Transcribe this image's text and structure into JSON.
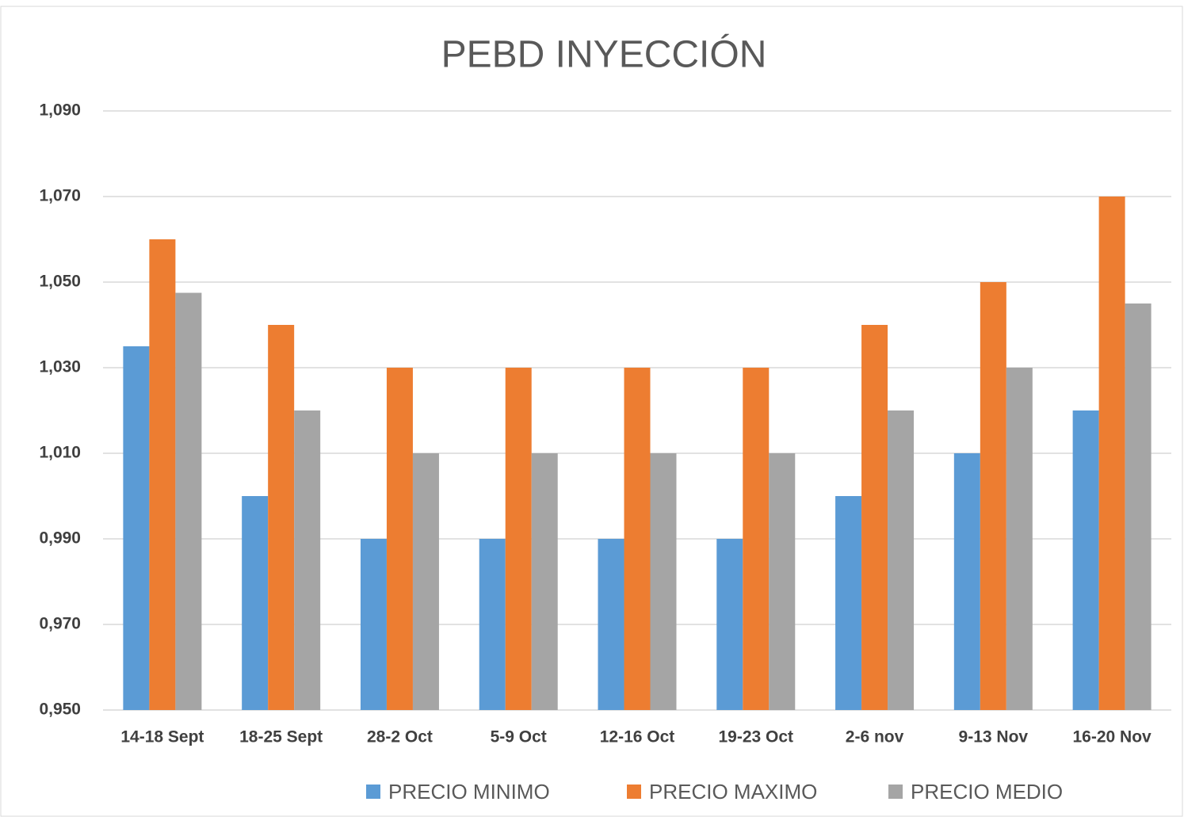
{
  "chart_data": {
    "type": "bar",
    "title": "PEBD INYECCIÓN",
    "categories": [
      "14-18 Sept",
      "18-25 Sept",
      "28-2 Oct",
      "5-9 Oct",
      "12-16 Oct",
      "19-23 Oct",
      "2-6 nov",
      "9-13 Nov",
      "16-20 Nov"
    ],
    "series": [
      {
        "name": "PRECIO MINIMO",
        "color": "#5b9bd5",
        "values": [
          1.035,
          1.0,
          0.99,
          0.99,
          0.99,
          0.99,
          1.0,
          1.01,
          1.02
        ]
      },
      {
        "name": "PRECIO MAXIMO",
        "color": "#ed7d31",
        "values": [
          1.06,
          1.04,
          1.03,
          1.03,
          1.03,
          1.03,
          1.04,
          1.05,
          1.07
        ]
      },
      {
        "name": "PRECIO MEDIO",
        "color": "#a5a5a5",
        "values": [
          1.0475,
          1.02,
          1.01,
          1.01,
          1.01,
          1.01,
          1.02,
          1.03,
          1.045
        ]
      }
    ],
    "ylim": [
      0.95,
      1.09
    ],
    "yticks": [
      {
        "value": 0.95,
        "label": "0,950"
      },
      {
        "value": 0.97,
        "label": "0,970"
      },
      {
        "value": 0.99,
        "label": "0,990"
      },
      {
        "value": 1.01,
        "label": "1,010"
      },
      {
        "value": 1.03,
        "label": "1,030"
      },
      {
        "value": 1.05,
        "label": "1,050"
      },
      {
        "value": 1.07,
        "label": "1,070"
      },
      {
        "value": 1.09,
        "label": "1,090"
      }
    ],
    "grid": true,
    "legend": "bottom"
  }
}
